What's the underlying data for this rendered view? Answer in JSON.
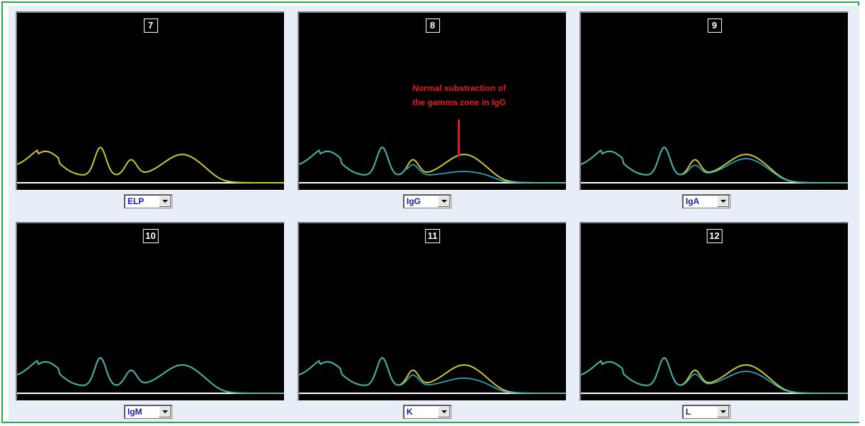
{
  "colors": {
    "frame": "#22b04a",
    "panel_bg": "#000000",
    "baseline": "#ffffff",
    "curve_total": "#c8c832",
    "curve_sub": "#2ab0c8",
    "annotation": "#e01b1b"
  },
  "panels": [
    {
      "number": "7",
      "select": "ELP",
      "sub_curve": "none"
    },
    {
      "number": "8",
      "select": "IgG",
      "sub_curve": "igg"
    },
    {
      "number": "9",
      "select": "IgA",
      "sub_curve": "iga"
    },
    {
      "number": "10",
      "select": "IgM",
      "sub_curve": "igm"
    },
    {
      "number": "11",
      "select": "K",
      "sub_curve": "k"
    },
    {
      "number": "12",
      "select": "L",
      "sub_curve": "l"
    }
  ],
  "annotation": {
    "line1": "Normal substraction of",
    "line2": "the gamma zone  in IgG"
  }
}
